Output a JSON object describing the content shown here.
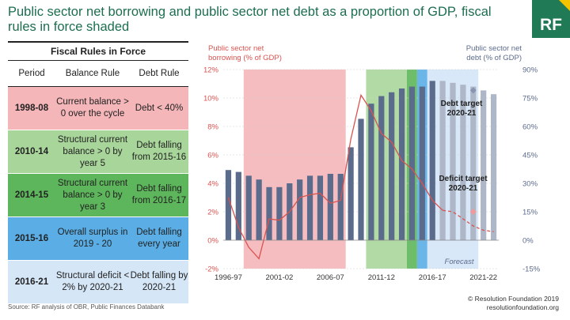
{
  "title": "Public sector net borrowing and public sector net debt as a proportion of GDP, fiscal rules in force shaded",
  "logo_text": "RF",
  "table": {
    "title": "Fiscal Rules in Force",
    "headers": [
      "Period",
      "Balance Rule",
      "Debt Rule"
    ],
    "rows": [
      {
        "period": "1998-08",
        "balance": "Current balance > 0 over the cycle",
        "debt": "Debt < 40%",
        "color": "#f4b6b9"
      },
      {
        "period": "2010-14",
        "balance": "Structural current balance > 0 by year 5",
        "debt": "Debt falling from 2015-16",
        "color": "#a8d69a"
      },
      {
        "period": "2014-15",
        "balance": "Structural current balance > 0 by year 3",
        "debt": "Debt falling from 2016-17",
        "color": "#5db65b"
      },
      {
        "period": "2015-16",
        "balance": "Overall surplus in 2019 - 20",
        "debt": "Debt falling every year",
        "color": "#5aaee5"
      },
      {
        "period": "2016-21",
        "balance": "Structural deficit < 2% by 2020-21",
        "debt": "Debt falling by 2020-21",
        "color": "#d5e6f7"
      }
    ]
  },
  "chart_data": {
    "type": "bar",
    "left_axis_label": "Public sector net borrowing (% of GDP)",
    "right_axis_label": "Public sector net debt (% of GDP)",
    "left_ticks": [
      "12%",
      "10%",
      "8%",
      "6%",
      "4%",
      "2%",
      "0%",
      "-2%"
    ],
    "right_ticks": [
      "90%",
      "75%",
      "60%",
      "45%",
      "30%",
      "15%",
      "0%",
      "-15%"
    ],
    "left_range": [
      -2,
      12
    ],
    "right_range": [
      -15,
      90
    ],
    "x_ticks": [
      "1996-97",
      "2001-02",
      "2006-07",
      "2011-12",
      "2016-17",
      "2021-22"
    ],
    "categories": [
      "1996-97",
      "1997-98",
      "1998-99",
      "1999-00",
      "2000-01",
      "2001-02",
      "2002-03",
      "2003-04",
      "2004-05",
      "2005-06",
      "2006-07",
      "2007-08",
      "2008-09",
      "2009-10",
      "2010-11",
      "2011-12",
      "2012-13",
      "2013-14",
      "2014-15",
      "2015-16",
      "2016-17",
      "2017-18",
      "2018-19",
      "2019-20",
      "2020-21",
      "2021-22",
      "2022-23"
    ],
    "debt_series": {
      "name": "Public sector net debt",
      "values": [
        37,
        36,
        34,
        32,
        28,
        28,
        30,
        32,
        34,
        34,
        35,
        35,
        49,
        64,
        72,
        76,
        78,
        80,
        81,
        81,
        84,
        84,
        83,
        82,
        81,
        79,
        77
      ]
    },
    "borrowing_series": {
      "name": "Public sector net borrowing",
      "values": [
        3.0,
        0.9,
        -0.5,
        -1.3,
        1.5,
        1.4,
        2.0,
        3.0,
        3.2,
        3.3,
        2.6,
        2.8,
        7.1,
        10.2,
        9.1,
        7.5,
        6.9,
        5.6,
        5.0,
        4.0,
        2.8,
        2.1,
        2.0,
        1.5,
        1.0,
        0.7,
        0.6
      ]
    },
    "forecast_start_index": 21,
    "annotations": {
      "forecast": "Forecast",
      "debt_target": "Debt target 2020-21",
      "deficit_target": "Deficit target 2020-21",
      "debt_target_value": 79,
      "deficit_target_value": 2
    },
    "shaded_periods": [
      {
        "label": "1998-08",
        "from": "1998-99",
        "to": "2007-08",
        "color": "#f4b6b9"
      },
      {
        "label": "2010-14",
        "from": "2010-11",
        "to": "2013-14",
        "color": "#a8d69a"
      },
      {
        "label": "2014-15",
        "from": "2014-15",
        "to": "2014-15",
        "color": "#5db65b"
      },
      {
        "label": "2015-16",
        "from": "2015-16",
        "to": "2015-16",
        "color": "#5aaee5"
      },
      {
        "label": "2016-21",
        "from": "2016-17",
        "to": "2020-21",
        "color": "#d5e6f7"
      }
    ]
  },
  "source": "Source: RF analysis of OBR, Public Finances Databank",
  "copyright": "© Resolution Foundation 2019",
  "website": "resolutionfoundation.org"
}
